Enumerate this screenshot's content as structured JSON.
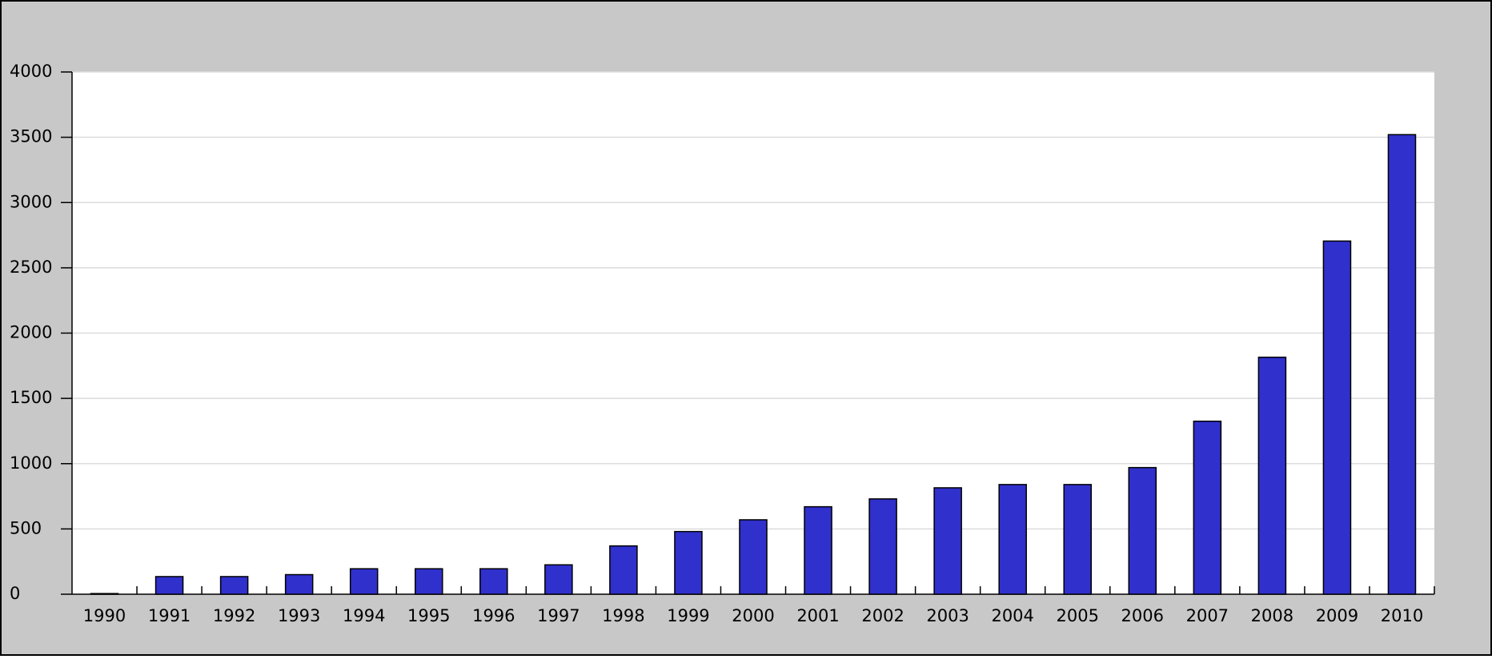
{
  "chart_data": {
    "type": "bar",
    "categories": [
      "1990",
      "1991",
      "1992",
      "1993",
      "1994",
      "1995",
      "1996",
      "1997",
      "1998",
      "1999",
      "2000",
      "2001",
      "2002",
      "2003",
      "2004",
      "2005",
      "2006",
      "2007",
      "2008",
      "2009",
      "2010"
    ],
    "values": [
      5,
      135,
      135,
      150,
      195,
      195,
      195,
      225,
      370,
      480,
      570,
      670,
      730,
      815,
      840,
      840,
      970,
      1325,
      1815,
      2705,
      3520
    ],
    "color": "#3030cc",
    "ylim": [
      0,
      4000
    ],
    "yticks": [
      0,
      500,
      1000,
      1500,
      2000,
      2500,
      3000,
      3500,
      4000
    ],
    "grid": true
  }
}
